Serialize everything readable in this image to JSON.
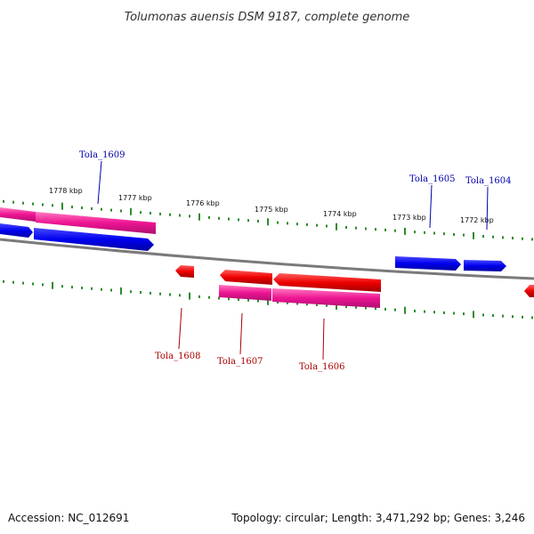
{
  "title": "Tolumonas auensis DSM 9187, complete genome",
  "footer": {
    "accession": "Accession: NC_012691",
    "summary": "Topology: circular; Length: 3,471,292 bp; Genes: 3,246"
  },
  "colors": {
    "backbone": "#808080",
    "tick": "#2e8b2e",
    "forward_gene": "#0000ee",
    "forward_cds": "#ee1493",
    "reverse_gene": "#ee0000",
    "reverse_cds": "#ee1493",
    "forward_label": "#0000aa",
    "reverse_label": "#aa0000"
  },
  "ticks": [
    {
      "label": "1778 kbp"
    },
    {
      "label": "1777 kbp"
    },
    {
      "label": "1776 kbp"
    },
    {
      "label": "1775 kbp"
    },
    {
      "label": "1774 kbp"
    },
    {
      "label": "1773 kbp"
    },
    {
      "label": "1772 kbp"
    }
  ],
  "genes": [
    {
      "label": "Tola_1609",
      "strand": "forward"
    },
    {
      "label": "Tola_1605",
      "strand": "forward"
    },
    {
      "label": "Tola_1604",
      "strand": "forward"
    },
    {
      "label": "Tola_1608",
      "strand": "reverse"
    },
    {
      "label": "Tola_1607",
      "strand": "reverse"
    },
    {
      "label": "Tola_1606",
      "strand": "reverse"
    }
  ]
}
